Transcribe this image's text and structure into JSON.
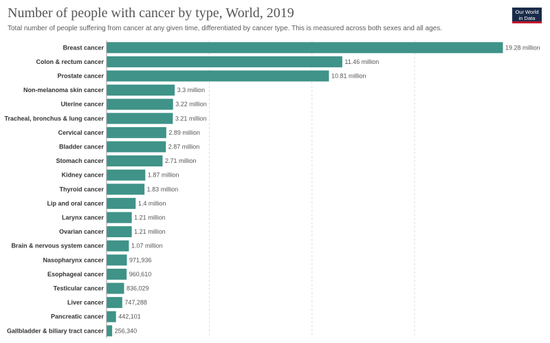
{
  "header": {
    "title": "Number of people with cancer by type, World, 2019",
    "subtitle": "Total number of people suffering from cancer at any given time, differentiated by cancer type. This is measured across both sexes and all ages.",
    "logo_line1": "Our World",
    "logo_line2": "in Data"
  },
  "colors": {
    "bar": "#3f9388",
    "grid": "#dddddd"
  },
  "chart_data": {
    "type": "bar",
    "orientation": "horizontal",
    "categories": [
      "Breast cancer",
      "Colon & rectum cancer",
      "Prostate cancer",
      "Non-melanoma skin cancer",
      "Uterine cancer",
      "Tracheal, bronchus & lung cancer",
      "Cervical cancer",
      "Bladder cancer",
      "Stomach cancer",
      "Kidney cancer",
      "Thyroid cancer",
      "Lip and oral cancer",
      "Larynx cancer",
      "Ovarian cancer",
      "Brain & nervous system cancer",
      "Nasopharynx cancer",
      "Esophageal cancer",
      "Testicular cancer",
      "Liver cancer",
      "Pancreatic cancer",
      "Gallbladder & biliary tract cancer"
    ],
    "values": [
      19280000,
      11460000,
      10810000,
      3300000,
      3220000,
      3210000,
      2890000,
      2870000,
      2710000,
      1870000,
      1830000,
      1400000,
      1210000,
      1210000,
      1070000,
      971936,
      960610,
      836029,
      747288,
      442101,
      256340
    ],
    "labels": [
      "19.28 million",
      "11.46 million",
      "10.81 million",
      "3.3 million",
      "3.22 million",
      "3.21 million",
      "2.89 million",
      "2.87 million",
      "2.71 million",
      "1.87 million",
      "1.83 million",
      "1.4 million",
      "1.21 million",
      "1.21 million",
      "1.07 million",
      "971,936",
      "960,610",
      "836,029",
      "747,288",
      "442,101",
      "256,340"
    ],
    "xlim": [
      0,
      19280000
    ],
    "grid": true
  }
}
